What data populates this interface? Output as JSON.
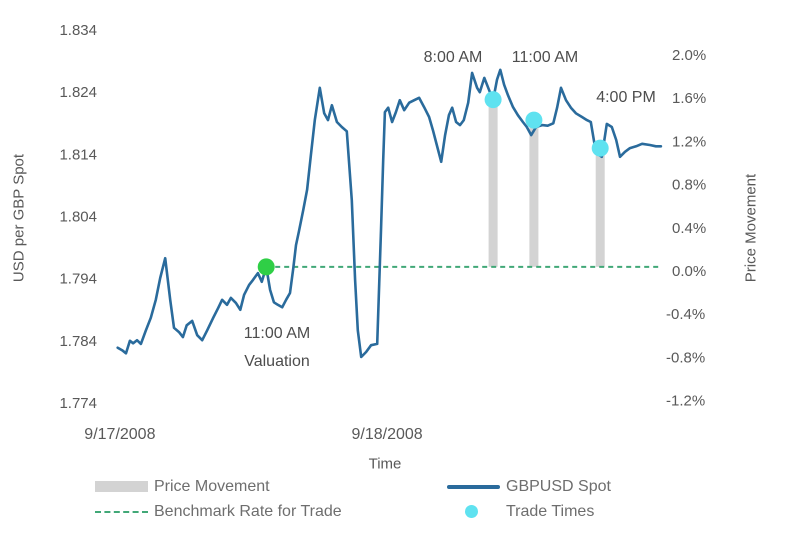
{
  "chart_data": {
    "type": "line",
    "title": "",
    "x_axis": {
      "title": "Time",
      "ticks": [
        {
          "label": "9/17/2008",
          "t": 0.018
        },
        {
          "label": "9/18/2008",
          "t": 0.502
        }
      ]
    },
    "left_axis": {
      "title": "USD per GBP Spot",
      "min": 1.774,
      "max": 1.834,
      "ticks": [
        1.834,
        1.824,
        1.814,
        1.804,
        1.794,
        1.784,
        1.774
      ]
    },
    "right_axis": {
      "title": "Price Movement",
      "min_pct": -1.2,
      "max_pct": 2.0,
      "ticks_pct": [
        2.0,
        1.6,
        1.2,
        0.8,
        0.4,
        0.0,
        -0.4,
        -0.8,
        -1.2
      ]
    },
    "grid": false,
    "benchmark": {
      "value": 1.7959,
      "pct": 0.0,
      "start_t": 0.283
    },
    "valuation": {
      "t": 0.283,
      "price": 1.7959,
      "label_time": "11:00 AM",
      "label_name": "Valuation"
    },
    "trades": [
      {
        "label": "8:00 AM",
        "t": 0.694,
        "price": 1.8228,
        "move_pct": 1.6
      },
      {
        "label": "11:00 AM",
        "t": 0.768,
        "price": 1.8195,
        "move_pct": 1.4
      },
      {
        "label": "4:00 PM",
        "t": 0.888,
        "price": 1.815,
        "move_pct": 1.1
      }
    ],
    "series": [
      {
        "name": "GBPUSD Spot",
        "points": [
          [
            0.014,
            1.7829
          ],
          [
            0.022,
            1.7825
          ],
          [
            0.029,
            1.782
          ],
          [
            0.036,
            1.784
          ],
          [
            0.042,
            1.7836
          ],
          [
            0.049,
            1.7841
          ],
          [
            0.056,
            1.7835
          ],
          [
            0.065,
            1.7857
          ],
          [
            0.074,
            1.7877
          ],
          [
            0.083,
            1.7906
          ],
          [
            0.091,
            1.7941
          ],
          [
            0.1,
            1.7973
          ],
          [
            0.109,
            1.7906
          ],
          [
            0.116,
            1.7861
          ],
          [
            0.125,
            1.7854
          ],
          [
            0.132,
            1.7846
          ],
          [
            0.139,
            1.7865
          ],
          [
            0.149,
            1.7872
          ],
          [
            0.158,
            1.7849
          ],
          [
            0.167,
            1.7841
          ],
          [
            0.176,
            1.7857
          ],
          [
            0.187,
            1.7877
          ],
          [
            0.196,
            1.7893
          ],
          [
            0.203,
            1.7906
          ],
          [
            0.212,
            1.7898
          ],
          [
            0.219,
            1.7909
          ],
          [
            0.228,
            1.7901
          ],
          [
            0.236,
            1.789
          ],
          [
            0.243,
            1.7914
          ],
          [
            0.252,
            1.793
          ],
          [
            0.259,
            1.7938
          ],
          [
            0.268,
            1.7949
          ],
          [
            0.275,
            1.7935
          ],
          [
            0.283,
            1.7959
          ],
          [
            0.29,
            1.7922
          ],
          [
            0.297,
            1.7902
          ],
          [
            0.304,
            1.7898
          ],
          [
            0.312,
            1.7894
          ],
          [
            0.319,
            1.7906
          ],
          [
            0.326,
            1.7917
          ],
          [
            0.332,
            1.7957
          ],
          [
            0.337,
            1.7994
          ],
          [
            0.342,
            1.8015
          ],
          [
            0.35,
            1.805
          ],
          [
            0.357,
            1.8083
          ],
          [
            0.364,
            1.8139
          ],
          [
            0.371,
            1.8195
          ],
          [
            0.38,
            1.8247
          ],
          [
            0.388,
            1.8206
          ],
          [
            0.395,
            1.8195
          ],
          [
            0.402,
            1.8219
          ],
          [
            0.411,
            1.8192
          ],
          [
            0.42,
            1.8184
          ],
          [
            0.429,
            1.8177
          ],
          [
            0.438,
            1.8066
          ],
          [
            0.444,
            1.7938
          ],
          [
            0.449,
            1.7857
          ],
          [
            0.455,
            1.7814
          ],
          [
            0.464,
            1.7822
          ],
          [
            0.473,
            1.7833
          ],
          [
            0.484,
            1.7835
          ],
          [
            0.491,
            1.8018
          ],
          [
            0.495,
            1.8131
          ],
          [
            0.498,
            1.8208
          ],
          [
            0.504,
            1.8215
          ],
          [
            0.511,
            1.8192
          ],
          [
            0.518,
            1.8208
          ],
          [
            0.525,
            1.8227
          ],
          [
            0.533,
            1.8211
          ],
          [
            0.542,
            1.8223
          ],
          [
            0.551,
            1.8227
          ],
          [
            0.56,
            1.8231
          ],
          [
            0.569,
            1.8216
          ],
          [
            0.578,
            1.82
          ],
          [
            0.585,
            1.8179
          ],
          [
            0.592,
            1.8155
          ],
          [
            0.6,
            1.8128
          ],
          [
            0.607,
            1.8171
          ],
          [
            0.614,
            1.8203
          ],
          [
            0.62,
            1.8215
          ],
          [
            0.627,
            1.8192
          ],
          [
            0.634,
            1.8187
          ],
          [
            0.641,
            1.8195
          ],
          [
            0.649,
            1.8223
          ],
          [
            0.656,
            1.8271
          ],
          [
            0.665,
            1.8247
          ],
          [
            0.67,
            1.824
          ],
          [
            0.678,
            1.8263
          ],
          [
            0.687,
            1.8243
          ],
          [
            0.694,
            1.8227
          ],
          [
            0.701,
            1.826
          ],
          [
            0.707,
            1.8276
          ],
          [
            0.714,
            1.8252
          ],
          [
            0.721,
            1.8235
          ],
          [
            0.73,
            1.8216
          ],
          [
            0.739,
            1.8203
          ],
          [
            0.748,
            1.8192
          ],
          [
            0.755,
            1.8184
          ],
          [
            0.763,
            1.8171
          ],
          [
            0.772,
            1.8184
          ],
          [
            0.783,
            1.8187
          ],
          [
            0.793,
            1.8186
          ],
          [
            0.803,
            1.819
          ],
          [
            0.81,
            1.8215
          ],
          [
            0.817,
            1.8247
          ],
          [
            0.826,
            1.8227
          ],
          [
            0.835,
            1.8215
          ],
          [
            0.844,
            1.8206
          ],
          [
            0.855,
            1.82
          ],
          [
            0.864,
            1.8195
          ],
          [
            0.871,
            1.8192
          ],
          [
            0.879,
            1.815
          ],
          [
            0.886,
            1.8139
          ],
          [
            0.891,
            1.8136
          ],
          [
            0.9,
            1.8189
          ],
          [
            0.909,
            1.8184
          ],
          [
            0.917,
            1.8163
          ],
          [
            0.924,
            1.8136
          ],
          [
            0.933,
            1.8144
          ],
          [
            0.942,
            1.815
          ],
          [
            0.953,
            1.8153
          ],
          [
            0.964,
            1.8157
          ],
          [
            0.978,
            1.8155
          ],
          [
            0.989,
            1.8153
          ],
          [
            0.998,
            1.8153
          ]
        ]
      }
    ]
  },
  "legend": {
    "items": [
      {
        "label": "Price Movement",
        "swatch": "bar"
      },
      {
        "label": "Benchmark Rate for Trade",
        "swatch": "dashed-line"
      },
      {
        "label": "GBPUSD Spot",
        "swatch": "line"
      },
      {
        "label": "Trade Times",
        "swatch": "dot"
      }
    ]
  },
  "colors": {
    "line": "#2a6b9c",
    "benchmark": "#41a877",
    "valuation_dot": "#2fcf46",
    "trade_dot": "#5fe2f0",
    "bar": "#d3d3d3",
    "tick_text": "#595959",
    "annotation_text": "#4d4d4d",
    "legend_text": "#6e6e6e"
  }
}
